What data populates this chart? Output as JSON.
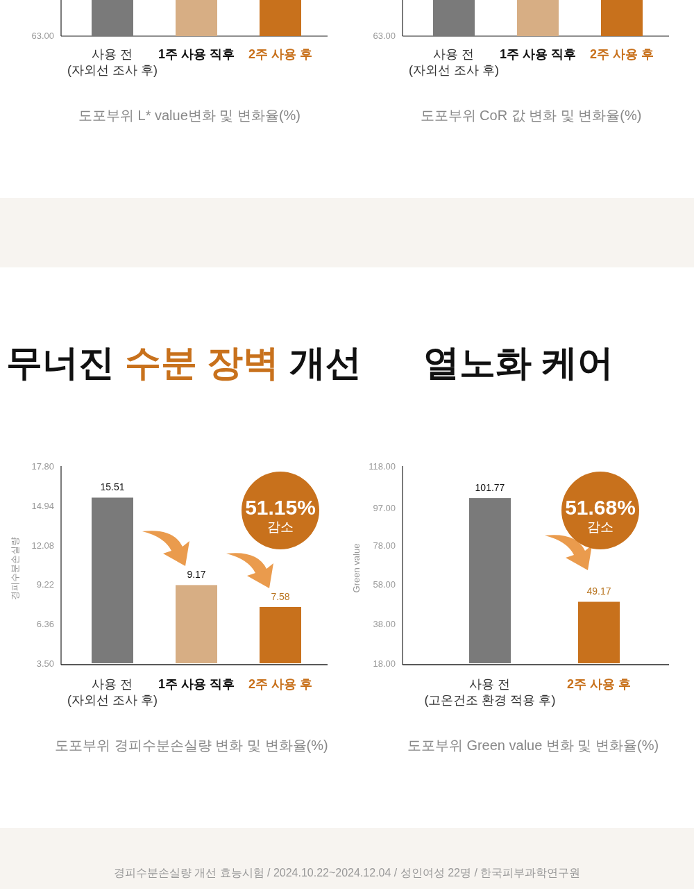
{
  "chart_data": [
    {
      "type": "other",
      "categories": [
        "사용 전\n(자외선 조사 후)",
        "1주 사용 직후",
        "2주 사용 후"
      ],
      "colors": [
        "#7a7a7a",
        "#d7ae84",
        "#c8711c"
      ],
      "annotations": [
        "63.00",
        "도포부위 L* value변화 및 변화율(%)"
      ]
    },
    {
      "type": "other",
      "categories": [
        "사용 전\n(자외선 조사 후)",
        "1주 사용 직후",
        "2주 사용 후"
      ],
      "colors": [
        "#7a7a7a",
        "#d7ae84",
        "#c8711c"
      ],
      "annotations": [
        "63.00",
        "도포부위 CoR 값 변화 및 변화율(%)"
      ]
    },
    {
      "type": "bar",
      "title": "무너진 수분 장벽 개선",
      "ylabel": "경피수분손실량",
      "categories": [
        "사용 전\n(자외선 조사 후)",
        "1주 사용 직후",
        "2주 사용 후"
      ],
      "values": [
        15.51,
        9.17,
        7.58
      ],
      "colors": [
        "#7a7a7a",
        "#d7ae84",
        "#c8711c"
      ],
      "data_labels": true,
      "ylim": [
        3.5,
        17.8
      ],
      "yticks": [
        {
          "value": 3.5,
          "label": "3.50"
        },
        {
          "value": 6.36,
          "label": "6.36"
        },
        {
          "value": 9.22,
          "label": "9.22"
        },
        {
          "value": 12.08,
          "label": "12.08"
        },
        {
          "value": 14.94,
          "label": "14.94"
        },
        {
          "value": 17.8,
          "label": "17.80"
        }
      ],
      "annotations": [
        "51.15%\n감소",
        "도포부위 경피수분손실량 변화 및 변화율(%)",
        "경피수분손실량 개선  효능시험 / 2024.10.22~2024.12.04 / 성인여성 22명 / 한국피부과학연구원"
      ]
    },
    {
      "type": "bar",
      "title": "열노화 케어",
      "ylabel": "Green value",
      "categories": [
        "사용 전\n(고온건조 환경 적용 후)",
        "2주 사용 후"
      ],
      "values": [
        101.77,
        49.17
      ],
      "colors": [
        "#7a7a7a",
        "#c8711c"
      ],
      "data_labels": true,
      "ylim": [
        18,
        118
      ],
      "yticks": [
        {
          "value": 18,
          "label": "18.00"
        },
        {
          "value": 38,
          "label": "38.00"
        },
        {
          "value": 58,
          "label": "58.00"
        },
        {
          "value": 78,
          "label": "78.00"
        },
        {
          "value": 97,
          "label": "97.00"
        },
        {
          "value": 118,
          "label": "118.00"
        }
      ],
      "annotations": [
        "51.68%\n감소",
        "도포부위 Green value 변화 및 변화율(%)"
      ]
    }
  ]
}
